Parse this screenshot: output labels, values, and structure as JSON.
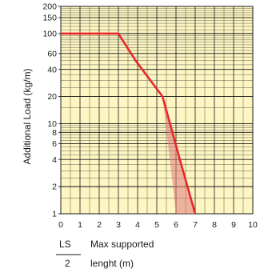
{
  "chart_data": {
    "type": "line",
    "ylabel": "Additional Load (kg/m)",
    "xlabel_line1": "Max supported",
    "xlabel_line2": "lenght (m)",
    "fraction": {
      "numerator": "LS",
      "denominator": "2"
    },
    "x_ticks": [
      0,
      1,
      2,
      3,
      4,
      5,
      6,
      7,
      8,
      9,
      10
    ],
    "y_ticks": [
      1,
      2,
      4,
      6,
      8,
      10,
      20,
      40,
      60,
      100,
      150,
      200
    ],
    "xlim": [
      0,
      10
    ],
    "ylim": [
      1,
      200
    ],
    "y_scale": "log",
    "grid": true,
    "series": [
      {
        "color": "#e8262b",
        "x": [
          0,
          3,
          3.9,
          5.3,
          6.2,
          7.0
        ],
        "y": [
          100,
          100,
          50,
          20,
          4,
          1
        ]
      }
    ],
    "band": {
      "color": "#e07a7a",
      "upper": {
        "x": [
          5.3,
          7.0
        ],
        "y": [
          20,
          1
        ]
      },
      "lower": {
        "x": [
          5.3,
          6.0
        ],
        "y": [
          20,
          1
        ]
      }
    },
    "colors": {
      "background": "#fdf6c3",
      "grid": "#1a1a1a",
      "line": "#e8262b"
    }
  }
}
